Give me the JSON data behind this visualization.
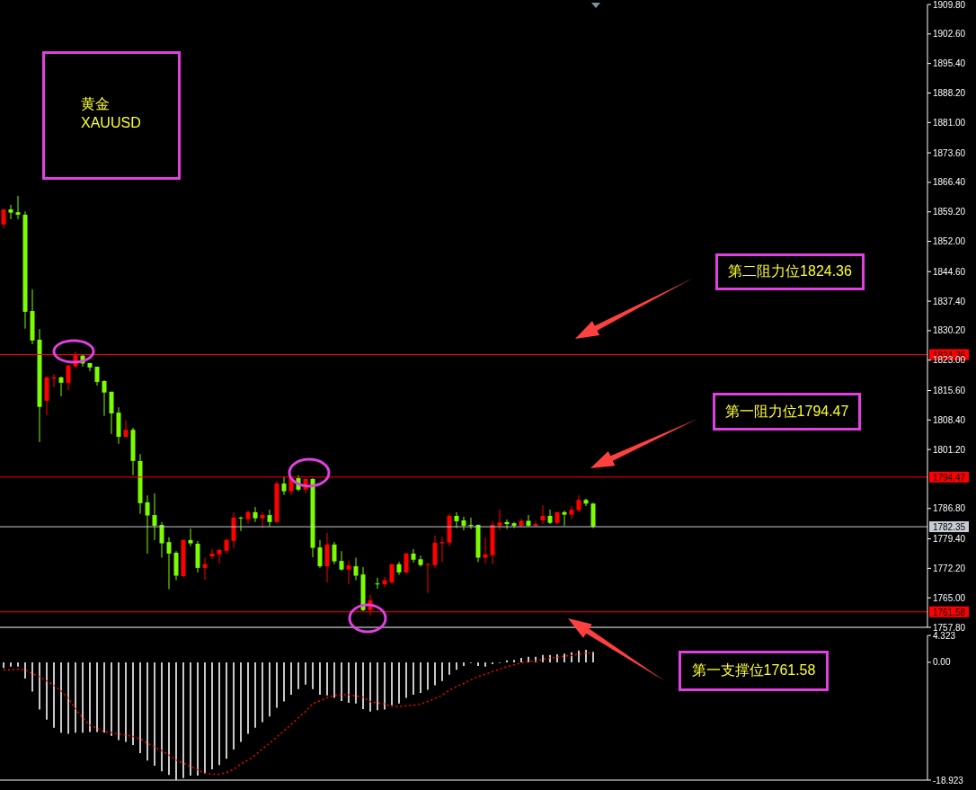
{
  "chart_data": [
    {
      "type": "candlestick",
      "categories": [
        null,
        null,
        null,
        null,
        null,
        null,
        null,
        null,
        null,
        null,
        null,
        null,
        null,
        null,
        null,
        null,
        null,
        null,
        null,
        null,
        null,
        null,
        null,
        null,
        null,
        null,
        null,
        null,
        null,
        null,
        null,
        null,
        null,
        null,
        null,
        null,
        null,
        null,
        null,
        null,
        null,
        null,
        null,
        null,
        null,
        null,
        null,
        null,
        null,
        null,
        null,
        null,
        null,
        null,
        null,
        null,
        null,
        null,
        null,
        null,
        null,
        null,
        null,
        null,
        null,
        null,
        null,
        null,
        null,
        null,
        null,
        null,
        null,
        null,
        null,
        null,
        null,
        null,
        null,
        null,
        null,
        null,
        null,
        null,
        null,
        null,
        null,
        null,
        null,
        null,
        null,
        null,
        null,
        null,
        null,
        null,
        null,
        null,
        null,
        null,
        null,
        null,
        null,
        null,
        null,
        null,
        null,
        null,
        null,
        null,
        null,
        null,
        null,
        null,
        null,
        null,
        null,
        null,
        null,
        null,
        null,
        null,
        null,
        null,
        null,
        null,
        null,
        null,
        null
      ],
      "ohlc": [
        [
          1856.1,
          1859.8,
          1855.2,
          1859.8
        ],
        [
          1859.8,
          1860.9,
          1857.4,
          1859.0
        ],
        [
          1859.1,
          1863.1,
          1857.4,
          1858.5
        ],
        [
          1858.5,
          1859.3,
          1830.7,
          1834.8
        ],
        [
          1835.0,
          1840.3,
          1826.9,
          1827.8
        ],
        [
          1828.0,
          1830.6,
          1803.0,
          1811.6
        ],
        [
          1813.1,
          1819.1,
          1809.6,
          1818.8
        ],
        [
          1818.5,
          1819.6,
          1816.4,
          1818.8
        ],
        [
          1818.8,
          1819.0,
          1814.2,
          1817.5
        ],
        [
          1817.5,
          1821.8,
          1815.7,
          1821.7
        ],
        [
          1821.5,
          1825.1,
          1821.0,
          1824.2
        ],
        [
          1824.1,
          1824.5,
          1821.4,
          1822.2
        ],
        [
          1822.3,
          1822.3,
          1820.3,
          1821.2
        ],
        [
          1821.4,
          1821.4,
          1816.8,
          1817.7
        ],
        [
          1817.9,
          1818.1,
          1809.4,
          1815.1
        ],
        [
          1815.3,
          1815.3,
          1805.0,
          1810.0
        ],
        [
          1810.2,
          1811.5,
          1802.6,
          1804.3
        ],
        [
          1804.3,
          1808.3,
          1804.1,
          1806.0
        ],
        [
          1806.0,
          1806.5,
          1794.9,
          1798.4
        ],
        [
          1798.4,
          1800.1,
          1785.5,
          1788.1
        ],
        [
          1788.3,
          1790.0,
          1775.8,
          1785.1
        ],
        [
          1785.2,
          1790.5,
          1779.1,
          1782.6
        ],
        [
          1782.8,
          1783.5,
          1774.8,
          1778.3
        ],
        [
          1778.6,
          1779.8,
          1767.1,
          1775.8
        ],
        [
          1776.0,
          1776.4,
          1769.3,
          1770.4
        ],
        [
          1770.3,
          1779.3,
          1770.1,
          1779.1
        ],
        [
          1779.1,
          1781.9,
          1777.6,
          1778.3
        ],
        [
          1778.2,
          1778.9,
          1771.2,
          1772.3
        ],
        [
          1772.3,
          1774.8,
          1769.4,
          1773.2
        ],
        [
          1775.1,
          1776.9,
          1774.5,
          1775.8
        ],
        [
          1775.6,
          1776.9,
          1773.4,
          1776.7
        ],
        [
          1776.5,
          1779.5,
          1775.8,
          1779.1
        ],
        [
          1778.9,
          1785.9,
          1777.2,
          1784.6
        ],
        [
          1784.6,
          1784.8,
          1781.3,
          1784.4
        ],
        [
          1784.2,
          1786.3,
          1783.1,
          1785.9
        ],
        [
          1785.9,
          1787.2,
          1783.5,
          1784.4
        ],
        [
          1784.4,
          1785.9,
          1782.0,
          1785.2
        ],
        [
          1785.2,
          1786.5,
          1782.4,
          1783.5
        ],
        [
          1783.5,
          1793.5,
          1783.2,
          1792.9
        ],
        [
          1792.9,
          1794.6,
          1790.1,
          1791.0
        ],
        [
          1791.0,
          1794.6,
          1790.1,
          1794.3
        ],
        [
          1794.2,
          1794.9,
          1791.0,
          1791.4
        ],
        [
          1791.4,
          1794.1,
          1790.5,
          1794.0
        ],
        [
          1794.0,
          1794.2,
          1774.9,
          1777.2
        ],
        [
          1777.3,
          1779.1,
          1772.3,
          1772.7
        ],
        [
          1772.7,
          1780.8,
          1768.8,
          1778.0
        ],
        [
          1778.0,
          1778.6,
          1773.2,
          1773.9
        ],
        [
          1774.0,
          1776.4,
          1771.6,
          1771.9
        ],
        [
          1771.9,
          1774.0,
          1768.4,
          1772.9
        ],
        [
          1772.7,
          1774.8,
          1769.3,
          1770.4
        ],
        [
          1770.7,
          1772.5,
          1761.7,
          1762.0
        ],
        [
          1762.0,
          1765.7,
          1760.7,
          1764.4
        ],
        [
          1768.5,
          1769.9,
          1767.2,
          1768.4
        ],
        [
          1768.3,
          1770.1,
          1767.5,
          1769.3
        ],
        [
          1768.8,
          1773.2,
          1768.4,
          1773.2
        ],
        [
          1773.2,
          1773.8,
          1770.6,
          1771.2
        ],
        [
          1771.2,
          1776.0,
          1771.0,
          1775.8
        ],
        [
          1775.8,
          1776.9,
          1773.6,
          1774.3
        ],
        [
          1774.4,
          1775.3,
          1772.6,
          1773.0
        ],
        [
          1773.0,
          1773.5,
          1766.2,
          1773.2
        ],
        [
          1773.0,
          1780.2,
          1772.3,
          1778.4
        ],
        [
          1778.3,
          1779.9,
          1773.8,
          1778.6
        ],
        [
          1778.5,
          1785.6,
          1777.6,
          1785.0
        ],
        [
          1785.0,
          1785.9,
          1782.0,
          1783.7
        ],
        [
          1783.9,
          1784.8,
          1781.5,
          1782.6
        ],
        [
          1782.8,
          1784.6,
          1781.8,
          1782.7
        ],
        [
          1782.8,
          1782.9,
          1773.7,
          1774.8
        ],
        [
          1774.8,
          1779.7,
          1773.4,
          1775.6
        ],
        [
          1775.4,
          1783.7,
          1773.2,
          1782.8
        ],
        [
          1782.6,
          1786.5,
          1781.5,
          1783.4
        ],
        [
          1783.5,
          1784.1,
          1781.8,
          1783.0
        ],
        [
          1783.2,
          1783.5,
          1782.0,
          1782.6
        ],
        [
          1782.6,
          1784.3,
          1782.2,
          1783.8
        ],
        [
          1783.8,
          1785.2,
          1782.4,
          1782.6
        ],
        [
          1782.6,
          1783.7,
          1782.4,
          1783.0
        ],
        [
          1783.9,
          1787.6,
          1783.0,
          1785.0
        ],
        [
          1785.0,
          1786.5,
          1783.0,
          1783.3
        ],
        [
          1783.3,
          1785.9,
          1782.9,
          1785.9
        ],
        [
          1785.9,
          1786.3,
          1782.6,
          1785.3
        ],
        [
          1785.3,
          1787.4,
          1784.2,
          1786.5
        ],
        [
          1786.4,
          1790.0,
          1785.9,
          1788.9
        ],
        [
          1788.9,
          1789.2,
          1787.4,
          1788.0
        ],
        [
          1788.0,
          1788.2,
          1782.0,
          1782.35
        ],
        null,
        null,
        null,
        null,
        null,
        null,
        null,
        null,
        null,
        null,
        null,
        null,
        null,
        null,
        null,
        null,
        null,
        null,
        null,
        null,
        null,
        null,
        null,
        null,
        null,
        null,
        null,
        null,
        null,
        null,
        null,
        null,
        null,
        null,
        null,
        null,
        null,
        null,
        null,
        null,
        null,
        null,
        null,
        null,
        null,
        null
      ],
      "ylim": [
        1757.8,
        1909.8
      ],
      "yticks": [
        {
          "value": 1757.8,
          "label": "1757.80"
        },
        {
          "value": 1765,
          "label": "1765.00"
        },
        {
          "value": 1772.2,
          "label": "1772.20"
        },
        {
          "value": 1779.4,
          "label": "1779.40"
        },
        {
          "value": 1786.8,
          "label": "1786.80"
        },
        {
          "value": 1801.2,
          "label": "1801.20"
        },
        {
          "value": 1808.4,
          "label": "1808.40"
        },
        {
          "value": 1815.6,
          "label": "1815.60"
        },
        {
          "value": 1823,
          "label": "1823.00"
        },
        {
          "value": 1830.2,
          "label": "1830.20"
        },
        {
          "value": 1837.4,
          "label": "1837.40"
        },
        {
          "value": 1844.6,
          "label": "1844.60"
        },
        {
          "value": 1852,
          "label": "1852.00"
        },
        {
          "value": 1859.2,
          "label": "1859.20"
        },
        {
          "value": 1866.4,
          "label": "1866.40"
        },
        {
          "value": 1873.6,
          "label": "1873.60"
        },
        {
          "value": 1881,
          "label": "1881.00"
        },
        {
          "value": 1888.2,
          "label": "1888.20"
        },
        {
          "value": 1895.4,
          "label": "1895.40"
        },
        {
          "value": 1902.6,
          "label": "1902.60"
        },
        {
          "value": 1909.8,
          "label": "1909.80"
        }
      ],
      "ref_lines": [
        {
          "axis": "y",
          "value": 1824.36,
          "label": "1824.36",
          "color": "#ff0000"
        },
        {
          "axis": "y",
          "value": 1794.47,
          "label": "1794.47",
          "color": "#ff0000"
        },
        {
          "axis": "y",
          "value": 1782.35,
          "label": "1782.35",
          "color": "#c8ccd4"
        },
        {
          "axis": "y",
          "value": 1761.58,
          "label": "1761.58",
          "color": "#ff0000"
        }
      ],
      "annotations": [
        "黄金",
        "XAUUSD",
        "第二阻力位1824.36",
        "第一阻力位1794.47",
        "第一支撑位1761.58"
      ],
      "tick_labels": "y"
    },
    {
      "type": "bar",
      "categories": [
        null,
        null,
        null,
        null,
        null,
        null,
        null,
        null,
        null,
        null,
        null,
        null,
        null,
        null,
        null,
        null,
        null,
        null,
        null,
        null,
        null,
        null,
        null,
        null,
        null,
        null,
        null,
        null,
        null,
        null,
        null,
        null,
        null,
        null,
        null,
        null,
        null,
        null,
        null,
        null,
        null,
        null,
        null,
        null,
        null,
        null,
        null,
        null,
        null,
        null,
        null,
        null,
        null,
        null,
        null,
        null,
        null,
        null,
        null,
        null,
        null,
        null,
        null,
        null,
        null,
        null,
        null,
        null,
        null,
        null,
        null,
        null,
        null,
        null,
        null,
        null,
        null,
        null,
        null,
        null,
        null,
        null,
        null,
        null,
        null,
        null,
        null,
        null,
        null,
        null,
        null,
        null,
        null,
        null,
        null,
        null,
        null,
        null,
        null,
        null,
        null,
        null,
        null,
        null,
        null,
        null,
        null,
        null,
        null,
        null,
        null,
        null,
        null,
        null,
        null,
        null,
        null,
        null,
        null,
        null,
        null,
        null,
        null,
        null,
        null,
        null,
        null,
        null,
        null
      ],
      "series": [
        {
          "type": "bar",
          "color": "#c8c8c8",
          "values": [
            -0.9,
            -0.7,
            -0.7,
            -2.6,
            -4.7,
            -7.6,
            -9.2,
            -10.5,
            -11.3,
            -11.5,
            -11.3,
            -11.3,
            -11.2,
            -11.2,
            -11.3,
            -11.8,
            -12.5,
            -12.8,
            -13.3,
            -14.6,
            -15.8,
            -16.6,
            -17.5,
            -18.1,
            -18.9,
            -18.6,
            -18.2,
            -18.2,
            -17.9,
            -17.2,
            -16.5,
            -15.5,
            -14.0,
            -12.8,
            -11.5,
            -10.5,
            -9.6,
            -8.7,
            -7.3,
            -6.3,
            -5.2,
            -4.3,
            -3.6,
            -4.3,
            -5.2,
            -5.3,
            -5.7,
            -6.2,
            -6.5,
            -6.6,
            -7.5,
            -7.9,
            -7.7,
            -7.6,
            -6.9,
            -6.6,
            -5.7,
            -5.2,
            -4.9,
            -4.4,
            -3.7,
            -3.0,
            -2.0,
            -1.2,
            -0.6,
            -0.1,
            -0.6,
            -0.7,
            -0.3,
            -0.1,
            0.3,
            0.4,
            0.7,
            0.9,
            0.9,
            1.2,
            1.2,
            1.3,
            1.4,
            1.6,
            1.9,
            2.0,
            1.7,
            null,
            null,
            null,
            null,
            null,
            null,
            null,
            null,
            null,
            null,
            null,
            null,
            null,
            null,
            null,
            null,
            null,
            null,
            null,
            null,
            null,
            null,
            null,
            null,
            null,
            null,
            null,
            null,
            null,
            null,
            null,
            null,
            null,
            null,
            null,
            null,
            null,
            null,
            null,
            null,
            null,
            null,
            null,
            null,
            null,
            null
          ]
        },
        {
          "type": "line",
          "color": "#ff0000",
          "line_style": "dotted",
          "values": [
            -1.2,
            -1.2,
            -1.1,
            -1.2,
            -1.8,
            -2.3,
            -3.0,
            -3.7,
            -4.6,
            -5.8,
            -7.5,
            -8.9,
            -10.1,
            -10.6,
            -11.1,
            -11.3,
            -11.5,
            -11.7,
            -11.9,
            -12.3,
            -13.0,
            -13.6,
            -14.2,
            -14.9,
            -15.7,
            -16.2,
            -16.7,
            -17.3,
            -17.8,
            -18.0,
            -18.0,
            -17.7,
            -17.2,
            -16.3,
            -15.7,
            -14.9,
            -13.9,
            -13.0,
            -12.0,
            -11.0,
            -10.0,
            -8.9,
            -7.9,
            -6.6,
            -6.2,
            -5.7,
            -5.3,
            -5.2,
            -5.2,
            -5.4,
            -5.6,
            -6.3,
            -6.5,
            -6.7,
            -7.1,
            -7.1,
            -7.0,
            -6.9,
            -6.7,
            -6.3,
            -5.8,
            -5.3,
            -4.5,
            -3.9,
            -3.4,
            -2.8,
            -2.3,
            -1.9,
            -1.5,
            -1.1,
            -0.7,
            -0.4,
            -0.1,
            0.1,
            0.2,
            0.5,
            0.7,
            0.8,
            1.0,
            1.1,
            1.3,
            1.5,
            1.5,
            null,
            null,
            null,
            null,
            null,
            null,
            null,
            null,
            null,
            null,
            null,
            null,
            null,
            null,
            null,
            null,
            null,
            null,
            null,
            null,
            null,
            null,
            null,
            null,
            null,
            null,
            null,
            null,
            null,
            null,
            null,
            null,
            null,
            null,
            null,
            null,
            null,
            null,
            null,
            null,
            null,
            null,
            null,
            null,
            null,
            null
          ]
        }
      ],
      "ylim": [
        -18.923,
        4.323
      ],
      "yticks": [
        4.323,
        {
          "value": 0,
          "label": "0.00"
        },
        -18.923
      ],
      "tick_labels": "y",
      "marker": "none"
    }
  ]
}
